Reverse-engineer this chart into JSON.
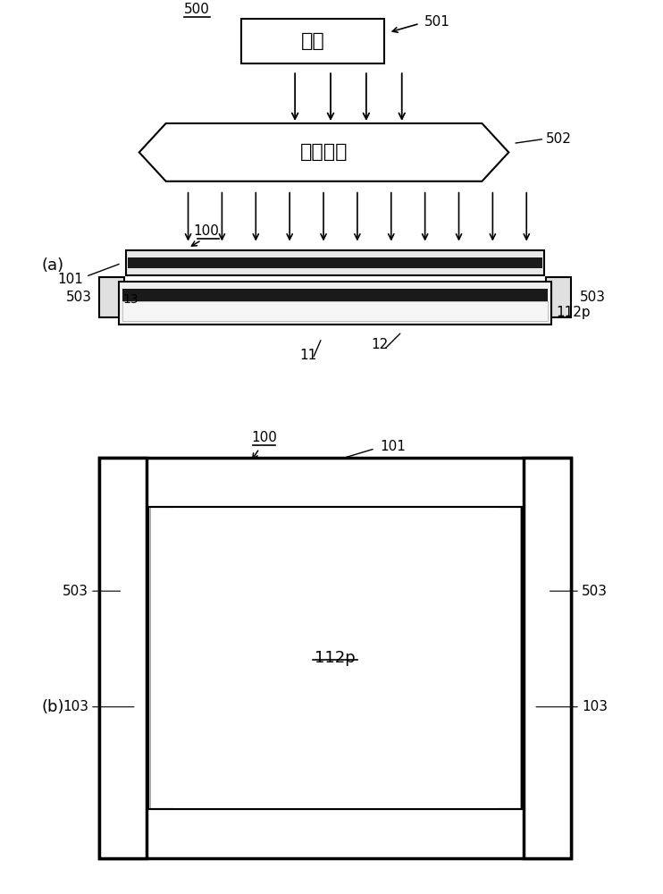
{
  "bg_color": "#ffffff",
  "fig_width": 7.42,
  "fig_height": 10.0,
  "label_500": "500",
  "label_501": "501",
  "label_502": "502",
  "label_100a": "100",
  "label_101a": "101",
  "label_503a_left": "503",
  "label_503a_right": "503",
  "label_13": "13",
  "label_12": "12",
  "label_11": "11",
  "label_112p_a": "112p",
  "label_a": "(a)",
  "label_100b": "100",
  "label_101b": "101",
  "label_503b_left": "503",
  "label_503b_right": "503",
  "label_103_left": "103",
  "label_103_right": "103",
  "label_112p_b": "112p",
  "label_b": "(b)",
  "text_guangyuan": "光源",
  "text_zhaoming": "照明系统"
}
